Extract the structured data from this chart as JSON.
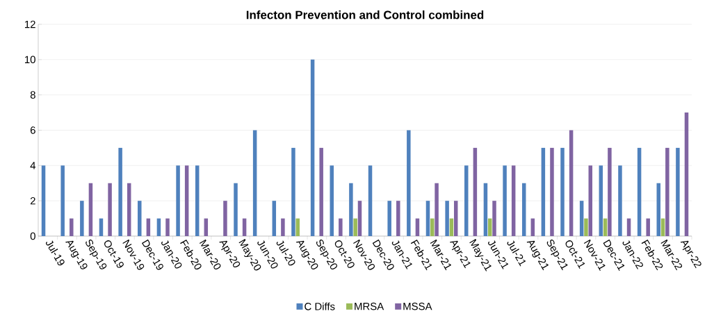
{
  "chart_data": {
    "type": "bar",
    "title": "Infecton Prevention and Control combined",
    "categories": [
      "Jul-19",
      "Aug-19",
      "Sep-19",
      "Oct-19",
      "Nov-19",
      "Dec-19",
      "Jan-20",
      "Feb-20",
      "Mar-20",
      "Apr-20",
      "May-20",
      "Jun-20",
      "Jul-20",
      "Aug-20",
      "Sep-20",
      "Oct-20",
      "Nov-20",
      "Dec-20",
      "Jan-21",
      "Feb-21",
      "Mar-21",
      "Apr-21",
      "May-21",
      "Jun-21",
      "Jul-21",
      "Aug-21",
      "Sep-21",
      "Oct-21",
      "Nov-21",
      "Dec-21",
      "Jan-22",
      "Feb-22",
      "Mar-22",
      "Apr-22"
    ],
    "series": [
      {
        "name": "C Diffs",
        "color": "#4f81bd",
        "values": [
          4,
          4,
          2,
          1,
          5,
          2,
          1,
          4,
          4,
          0,
          3,
          6,
          2,
          5,
          10,
          4,
          3,
          4,
          2,
          6,
          2,
          2,
          4,
          3,
          4,
          3,
          5,
          5,
          2,
          4,
          4,
          5,
          3,
          5
        ]
      },
      {
        "name": "MRSA",
        "color": "#9bbb59",
        "values": [
          0,
          0,
          0,
          0,
          0,
          0,
          0,
          0,
          0,
          0,
          0,
          0,
          0,
          1,
          0,
          0,
          1,
          0,
          0,
          0,
          1,
          1,
          0,
          1,
          0,
          0,
          0,
          0,
          1,
          1,
          0,
          0,
          1,
          0
        ]
      },
      {
        "name": "MSSA",
        "color": "#8064a2",
        "values": [
          0,
          1,
          3,
          3,
          3,
          1,
          1,
          4,
          1,
          2,
          1,
          0,
          1,
          0,
          5,
          1,
          2,
          0,
          2,
          1,
          3,
          2,
          5,
          2,
          4,
          1,
          5,
          6,
          4,
          5,
          1,
          1,
          5,
          7
        ]
      }
    ],
    "ylim": [
      0,
      12
    ],
    "yticks": [
      0,
      2,
      4,
      6,
      8,
      10,
      12
    ],
    "grid": "y",
    "legend": "bottom"
  }
}
